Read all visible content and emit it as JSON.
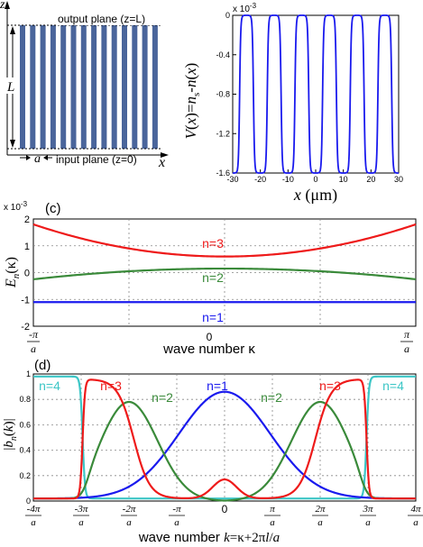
{
  "panel_a": {
    "axis_z": "z",
    "axis_x": "x",
    "output_plane": "output plane (z=L)",
    "input_plane": "input plane (z=0)",
    "length_label": "L",
    "period_label": "a",
    "stripe_color": "#4a659b"
  },
  "panel_b": {
    "exponent": "x 10",
    "exponent_power": "-3",
    "ylabel": "V(x)=n_s-n(x)",
    "xlabel": "x (μm)",
    "yticks": [
      "0",
      "-0.4",
      "-0.8",
      "-1.2",
      "-1.6"
    ],
    "xticks": [
      "-30",
      "-20",
      "-10",
      "0",
      "10",
      "20",
      "30"
    ]
  },
  "panel_c": {
    "label": "(c)",
    "exponent": "x 10",
    "exponent_power": "-3",
    "ylabel": "E_n(κ)",
    "xlabel": "wave number  κ",
    "yticks": [
      "2",
      "1",
      "0",
      "-1",
      "-2"
    ],
    "xtick_left": "-π/a",
    "xtick_mid": "0",
    "xtick_right": "π/a",
    "band_labels": [
      "n=3",
      "n=2",
      "n=1"
    ]
  },
  "panel_d": {
    "label": "(d)",
    "ylabel": "|b_n(k)|",
    "xlabel": "wave number  k=κ+2πl/a",
    "yticks": [
      "1",
      "0.8",
      "0.6",
      "0.4",
      "0.2",
      "0"
    ],
    "xticks": [
      "-4π/a",
      "-3π/a",
      "-2π/a",
      "-π/a",
      "0",
      "π/a",
      "2π/a",
      "3π/a",
      "4π/a"
    ],
    "band_labels": [
      "n=4",
      "n=3",
      "n=2",
      "n=1",
      "n=2",
      "n=3",
      "n=4"
    ]
  },
  "colors": {
    "n1": "#1a1aee",
    "n2": "#3a8a3a",
    "n3": "#ee1a1a",
    "n4": "#3cc6c6"
  },
  "chart_data": [
    {
      "type": "line",
      "panel": "b",
      "x": [
        -30,
        -25,
        -20,
        -15,
        -10,
        -5,
        0,
        5,
        10,
        15,
        20,
        25,
        30
      ],
      "series": [
        {
          "values": [
            -1.6,
            0,
            -1.6,
            0,
            -1.6,
            0,
            -1.6,
            0,
            -1.6,
            0,
            -1.6,
            0,
            -1.6
          ]
        }
      ],
      "xlim": [
        -30,
        30
      ],
      "ylim": [
        -1.6,
        0
      ],
      "period": 10
    },
    {
      "type": "line",
      "panel": "c",
      "x": [
        -1,
        -0.5,
        0,
        0.5,
        1
      ],
      "series": [
        {
          "name": "n=3",
          "values": [
            1.8,
            1.15,
            0.6,
            1.15,
            1.8
          ]
        },
        {
          "name": "n=2",
          "values": [
            -0.25,
            -0.05,
            0.15,
            -0.05,
            -0.25
          ]
        },
        {
          "name": "n=1",
          "values": [
            -1.1,
            -1.1,
            -1.1,
            -1.1,
            -1.1
          ]
        }
      ],
      "ylim": [
        -2,
        2
      ]
    },
    {
      "type": "line",
      "panel": "d",
      "x": [
        -4,
        -3,
        -2,
        -1,
        0,
        1,
        2,
        3,
        4
      ],
      "series": [
        {
          "name": "n=1",
          "values": [
            0,
            0.02,
            0.08,
            0.42,
            0.84,
            0.42,
            0.08,
            0.02,
            0
          ]
        },
        {
          "name": "n=2",
          "values": [
            0.02,
            0.06,
            0.78,
            0.32,
            0,
            0.32,
            0.78,
            0.06,
            0.02
          ]
        },
        {
          "name": "n=3",
          "values": [
            0.02,
            0.94,
            0.1,
            0.05,
            0.16,
            0.05,
            0.1,
            0.94,
            0.02
          ]
        },
        {
          "name": "n=4",
          "values": [
            0.96,
            0.02,
            0.01,
            0.01,
            0,
            0.01,
            0.01,
            0.02,
            0.96
          ]
        }
      ],
      "ylim": [
        0,
        1
      ]
    }
  ]
}
